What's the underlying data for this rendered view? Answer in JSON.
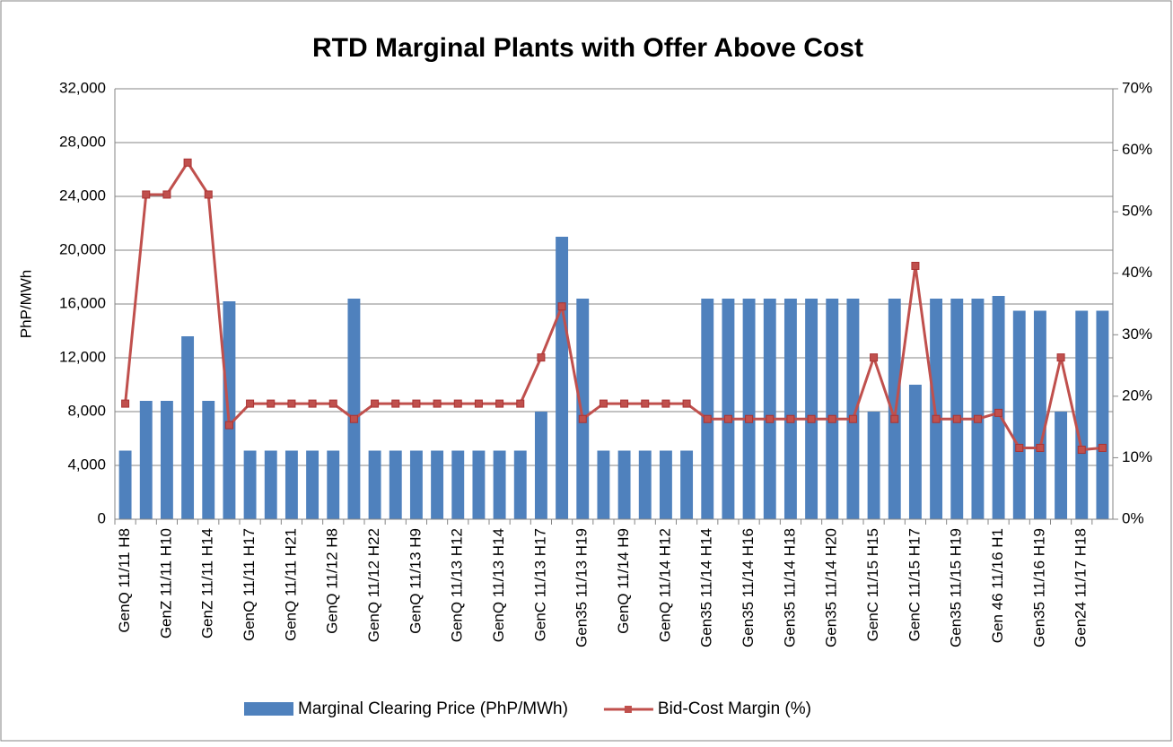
{
  "chart_data": {
    "type": "bar_line",
    "title": "RTD Marginal Plants with Offer Above Cost",
    "y_label": "PhP/MWh",
    "categories": [
      "GenQ 11/11 H8",
      null,
      "GenZ 11/11 H10",
      null,
      "GenZ 11/11 H14",
      null,
      "GenQ 11/11 H17",
      null,
      "GenQ 11/11 H21",
      null,
      "GenQ 11/12 H8",
      null,
      "GenQ 11/12 H22",
      null,
      "GenQ 11/13 H9",
      null,
      "GenQ 11/13 H12",
      null,
      "GenQ 11/13 H14",
      null,
      "GenC 11/13 H17",
      null,
      "Gen35 11/13 H19",
      null,
      "GenQ 11/14 H9",
      null,
      "GenQ 11/14 H12",
      null,
      "Gen35 11/14 H14",
      null,
      "Gen35 11/14 H16",
      null,
      "Gen35 11/14 H18",
      null,
      "Gen35 11/14 H20",
      null,
      "GenC 11/15 H15",
      null,
      "GenC 11/15 H17",
      null,
      "Gen35 11/15 H19",
      null,
      "Gen 46 11/16 H1",
      null,
      "Gen35 11/16 H19",
      null,
      "Gen24 11/17 H18",
      null
    ],
    "series": [
      {
        "name": "Marginal Clearing Price (PhP/MWh)",
        "type": "bar",
        "color": "#4f81bd",
        "values": [
          5100,
          8800,
          8800,
          13600,
          8800,
          16200,
          5100,
          5100,
          5100,
          5100,
          5100,
          16400,
          5100,
          5100,
          5100,
          5100,
          5100,
          5100,
          5100,
          5100,
          8000,
          21000,
          16400,
          5100,
          5100,
          5100,
          5100,
          5100,
          16400,
          16400,
          16400,
          16400,
          16400,
          16400,
          16400,
          16400,
          8000,
          16400,
          10000,
          16400,
          16400,
          16400,
          16600,
          15500,
          15500,
          8000,
          15500,
          15500
        ]
      },
      {
        "name": "Bid-Cost Margin (%)",
        "type": "line",
        "axis": "y2",
        "color": "#c0504d",
        "values": [
          18.8,
          52.8,
          52.8,
          58,
          52.8,
          15.3,
          18.8,
          18.8,
          18.8,
          18.8,
          18.8,
          16.3,
          18.8,
          18.8,
          18.8,
          18.8,
          18.8,
          18.8,
          18.8,
          18.8,
          26.3,
          34.6,
          16.3,
          18.8,
          18.8,
          18.8,
          18.8,
          18.8,
          16.3,
          16.3,
          16.3,
          16.3,
          16.3,
          16.3,
          16.3,
          16.3,
          26.3,
          16.3,
          41.2,
          16.3,
          16.3,
          16.3,
          17.3,
          11.6,
          11.6,
          26.3,
          11.3,
          11.6
        ]
      }
    ],
    "ylim": [
      0,
      32000
    ],
    "yticks": [
      0,
      {
        "value": 4000,
        "label": "4,000"
      },
      {
        "value": 8000,
        "label": "8,000"
      },
      {
        "value": 12000,
        "label": "12,000"
      },
      {
        "value": 16000,
        "label": "16,000"
      },
      {
        "value": 20000,
        "label": "20,000"
      },
      {
        "value": 24000,
        "label": "24,000"
      },
      {
        "value": 28000,
        "label": "28,000"
      },
      {
        "value": 32000,
        "label": "32,000"
      }
    ],
    "y2lim": [
      0,
      70
    ],
    "y2ticks": [
      {
        "value": 0,
        "label": "0%"
      },
      {
        "value": 10,
        "label": "10%"
      },
      {
        "value": 20,
        "label": "20%"
      },
      {
        "value": 30,
        "label": "30%"
      },
      {
        "value": 40,
        "label": "40%"
      },
      {
        "value": 50,
        "label": "50%"
      },
      {
        "value": 60,
        "label": "60%"
      },
      {
        "value": 70,
        "label": "70%"
      }
    ],
    "grid": true,
    "legend": "bottom"
  }
}
